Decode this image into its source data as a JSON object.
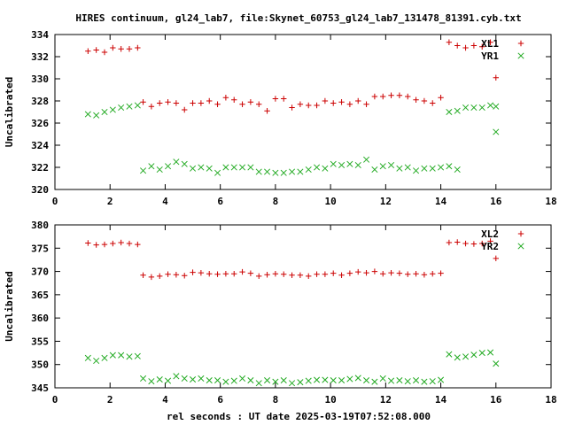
{
  "title": "HIRES continuum, gl24_lab7, file:Skynet_60753_gl24_lab7_131478_81391.cyb.txt",
  "xlabel": "rel seconds : UT date 2025-03-19T07:52:08.000",
  "colors": {
    "red": "#cc0000",
    "green": "#22aa22",
    "axis": "#000000"
  },
  "chart_data": [
    {
      "type": "scatter",
      "ylabel": "Uncalibrated",
      "xlim": [
        0,
        18
      ],
      "ylim": [
        320,
        334
      ],
      "xticks": [
        0,
        2,
        4,
        6,
        8,
        10,
        12,
        14,
        16,
        18
      ],
      "yticks": [
        320,
        322,
        324,
        326,
        328,
        330,
        332,
        334
      ],
      "legend_position": "top-right",
      "grid": false,
      "series": [
        {
          "name": "XL1",
          "marker": "plus",
          "color": "#cc0000",
          "points": [
            [
              1.2,
              332.5
            ],
            [
              1.5,
              332.6
            ],
            [
              1.8,
              332.4
            ],
            [
              2.1,
              332.8
            ],
            [
              2.4,
              332.7
            ],
            [
              2.7,
              332.7
            ],
            [
              3.0,
              332.8
            ],
            [
              3.2,
              327.9
            ],
            [
              3.5,
              327.5
            ],
            [
              3.8,
              327.8
            ],
            [
              4.1,
              327.9
            ],
            [
              4.4,
              327.8
            ],
            [
              4.7,
              327.2
            ],
            [
              5.0,
              327.8
            ],
            [
              5.3,
              327.8
            ],
            [
              5.6,
              328.0
            ],
            [
              5.9,
              327.7
            ],
            [
              6.2,
              328.3
            ],
            [
              6.5,
              328.1
            ],
            [
              6.8,
              327.7
            ],
            [
              7.1,
              327.9
            ],
            [
              7.4,
              327.7
            ],
            [
              7.7,
              327.1
            ],
            [
              8.0,
              328.2
            ],
            [
              8.3,
              328.2
            ],
            [
              8.6,
              327.4
            ],
            [
              8.9,
              327.7
            ],
            [
              9.2,
              327.6
            ],
            [
              9.5,
              327.6
            ],
            [
              9.8,
              328.0
            ],
            [
              10.1,
              327.8
            ],
            [
              10.4,
              327.9
            ],
            [
              10.7,
              327.7
            ],
            [
              11.0,
              328.0
            ],
            [
              11.3,
              327.7
            ],
            [
              11.6,
              328.4
            ],
            [
              11.9,
              328.4
            ],
            [
              12.2,
              328.5
            ],
            [
              12.5,
              328.5
            ],
            [
              12.8,
              328.4
            ],
            [
              13.1,
              328.1
            ],
            [
              13.4,
              328.0
            ],
            [
              13.7,
              327.8
            ],
            [
              14.0,
              328.3
            ],
            [
              14.3,
              333.3
            ],
            [
              14.6,
              333.0
            ],
            [
              14.9,
              332.8
            ],
            [
              15.2,
              333.0
            ],
            [
              15.5,
              332.9
            ],
            [
              15.8,
              333.3
            ],
            [
              16.0,
              330.1
            ]
          ]
        },
        {
          "name": "YR1",
          "marker": "cross",
          "color": "#22aa22",
          "points": [
            [
              1.2,
              326.8
            ],
            [
              1.5,
              326.7
            ],
            [
              1.8,
              327.0
            ],
            [
              2.1,
              327.2
            ],
            [
              2.4,
              327.4
            ],
            [
              2.7,
              327.5
            ],
            [
              3.0,
              327.6
            ],
            [
              3.2,
              321.7
            ],
            [
              3.5,
              322.1
            ],
            [
              3.8,
              321.8
            ],
            [
              4.1,
              322.1
            ],
            [
              4.4,
              322.5
            ],
            [
              4.7,
              322.3
            ],
            [
              5.0,
              321.9
            ],
            [
              5.3,
              322.0
            ],
            [
              5.6,
              321.9
            ],
            [
              5.9,
              321.5
            ],
            [
              6.2,
              322.0
            ],
            [
              6.5,
              322.0
            ],
            [
              6.8,
              322.0
            ],
            [
              7.1,
              322.0
            ],
            [
              7.4,
              321.6
            ],
            [
              7.7,
              321.6
            ],
            [
              8.0,
              321.5
            ],
            [
              8.3,
              321.5
            ],
            [
              8.6,
              321.6
            ],
            [
              8.9,
              321.6
            ],
            [
              9.2,
              321.8
            ],
            [
              9.5,
              322.0
            ],
            [
              9.8,
              321.9
            ],
            [
              10.1,
              322.3
            ],
            [
              10.4,
              322.2
            ],
            [
              10.7,
              322.3
            ],
            [
              11.0,
              322.2
            ],
            [
              11.3,
              322.7
            ],
            [
              11.6,
              321.8
            ],
            [
              11.9,
              322.1
            ],
            [
              12.2,
              322.2
            ],
            [
              12.5,
              321.9
            ],
            [
              12.8,
              322.0
            ],
            [
              13.1,
              321.7
            ],
            [
              13.4,
              321.9
            ],
            [
              13.7,
              321.9
            ],
            [
              14.0,
              322.0
            ],
            [
              14.3,
              322.1
            ],
            [
              14.6,
              321.8
            ],
            [
              14.3,
              327.0
            ],
            [
              14.6,
              327.1
            ],
            [
              14.9,
              327.4
            ],
            [
              15.2,
              327.4
            ],
            [
              15.5,
              327.4
            ],
            [
              15.8,
              327.6
            ],
            [
              16.0,
              327.5
            ],
            [
              16.0,
              325.2
            ]
          ]
        }
      ]
    },
    {
      "type": "scatter",
      "ylabel": "Uncalibrated",
      "xlim": [
        0,
        18
      ],
      "ylim": [
        345,
        380
      ],
      "xticks": [
        0,
        2,
        4,
        6,
        8,
        10,
        12,
        14,
        16,
        18
      ],
      "yticks": [
        345,
        350,
        355,
        360,
        365,
        370,
        375,
        380
      ],
      "legend_position": "top-right",
      "grid": false,
      "series": [
        {
          "name": "XL2",
          "marker": "plus",
          "color": "#cc0000",
          "points": [
            [
              1.2,
              376.1
            ],
            [
              1.5,
              375.7
            ],
            [
              1.8,
              375.8
            ],
            [
              2.1,
              376.0
            ],
            [
              2.4,
              376.2
            ],
            [
              2.7,
              376.0
            ],
            [
              3.0,
              375.8
            ],
            [
              3.2,
              369.2
            ],
            [
              3.5,
              368.8
            ],
            [
              3.8,
              369.0
            ],
            [
              4.1,
              369.4
            ],
            [
              4.4,
              369.3
            ],
            [
              4.7,
              369.1
            ],
            [
              5.0,
              369.8
            ],
            [
              5.3,
              369.7
            ],
            [
              5.6,
              369.5
            ],
            [
              5.9,
              369.4
            ],
            [
              6.2,
              369.5
            ],
            [
              6.5,
              369.5
            ],
            [
              6.8,
              369.9
            ],
            [
              7.1,
              369.6
            ],
            [
              7.4,
              369.0
            ],
            [
              7.7,
              369.3
            ],
            [
              8.0,
              369.5
            ],
            [
              8.3,
              369.4
            ],
            [
              8.6,
              369.2
            ],
            [
              8.9,
              369.2
            ],
            [
              9.2,
              369.0
            ],
            [
              9.5,
              369.4
            ],
            [
              9.8,
              369.4
            ],
            [
              10.1,
              369.6
            ],
            [
              10.4,
              369.2
            ],
            [
              10.7,
              369.6
            ],
            [
              11.0,
              369.9
            ],
            [
              11.3,
              369.7
            ],
            [
              11.6,
              370.0
            ],
            [
              11.9,
              369.5
            ],
            [
              12.2,
              369.7
            ],
            [
              12.5,
              369.6
            ],
            [
              12.8,
              369.4
            ],
            [
              13.1,
              369.5
            ],
            [
              13.4,
              369.3
            ],
            [
              13.7,
              369.5
            ],
            [
              14.0,
              369.6
            ],
            [
              14.3,
              376.2
            ],
            [
              14.6,
              376.3
            ],
            [
              14.9,
              376.0
            ],
            [
              15.2,
              375.9
            ],
            [
              15.5,
              376.0
            ],
            [
              15.8,
              376.5
            ],
            [
              16.0,
              372.8
            ]
          ]
        },
        {
          "name": "YR2",
          "marker": "cross",
          "color": "#22aa22",
          "points": [
            [
              1.2,
              351.4
            ],
            [
              1.5,
              350.8
            ],
            [
              1.8,
              351.4
            ],
            [
              2.1,
              352.0
            ],
            [
              2.4,
              352.0
            ],
            [
              2.7,
              351.7
            ],
            [
              3.0,
              351.8
            ],
            [
              3.2,
              347.0
            ],
            [
              3.5,
              346.4
            ],
            [
              3.8,
              346.8
            ],
            [
              4.1,
              346.5
            ],
            [
              4.4,
              347.5
            ],
            [
              4.7,
              347.0
            ],
            [
              5.0,
              346.8
            ],
            [
              5.3,
              347.0
            ],
            [
              5.6,
              346.6
            ],
            [
              5.9,
              346.6
            ],
            [
              6.2,
              346.3
            ],
            [
              6.5,
              346.5
            ],
            [
              6.8,
              347.0
            ],
            [
              7.1,
              346.6
            ],
            [
              7.4,
              346.0
            ],
            [
              7.7,
              346.6
            ],
            [
              8.0,
              346.3
            ],
            [
              8.3,
              346.6
            ],
            [
              8.6,
              346.0
            ],
            [
              8.9,
              346.2
            ],
            [
              9.2,
              346.5
            ],
            [
              9.5,
              346.7
            ],
            [
              9.8,
              346.7
            ],
            [
              10.1,
              346.6
            ],
            [
              10.4,
              346.6
            ],
            [
              10.7,
              346.9
            ],
            [
              11.0,
              347.1
            ],
            [
              11.3,
              346.6
            ],
            [
              11.6,
              346.3
            ],
            [
              11.9,
              347.0
            ],
            [
              12.2,
              346.5
            ],
            [
              12.5,
              346.6
            ],
            [
              12.8,
              346.4
            ],
            [
              13.1,
              346.6
            ],
            [
              13.4,
              346.3
            ],
            [
              13.7,
              346.4
            ],
            [
              14.0,
              346.7
            ],
            [
              14.3,
              352.2
            ],
            [
              14.6,
              351.5
            ],
            [
              14.9,
              351.7
            ],
            [
              15.2,
              352.1
            ],
            [
              15.5,
              352.5
            ],
            [
              15.8,
              352.6
            ],
            [
              16.0,
              350.2
            ]
          ]
        }
      ]
    }
  ]
}
